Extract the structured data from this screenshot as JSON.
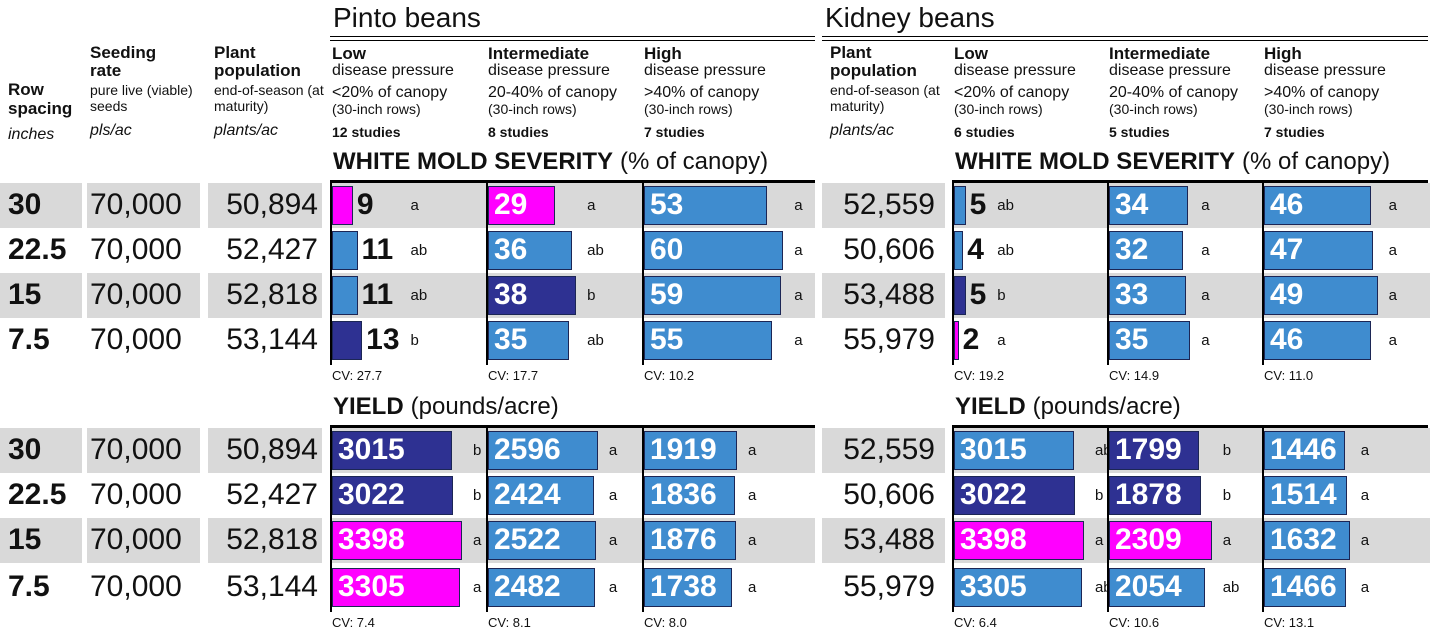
{
  "left_header": {
    "row_spacing": {
      "title": "Row spacing",
      "unit": "inches"
    },
    "seeding_rate": {
      "title": "Seeding rate",
      "note": "pure live (viable) seeds",
      "unit": "pls/ac"
    },
    "plant_population": {
      "title": "Plant population",
      "note": "end-of-season (at maturity)",
      "unit": "plants/ac"
    }
  },
  "row_spacing": [
    "30",
    "22.5",
    "15",
    "7.5"
  ],
  "seeding_rate": [
    "70,000",
    "70,000",
    "70,000",
    "70,000"
  ],
  "crops": [
    {
      "name": "Pinto beans",
      "population": [
        "50,894",
        "52,427",
        "52,818",
        "53,144"
      ],
      "conditions": [
        {
          "title": "Low",
          "subtitle": "disease pressure",
          "canopy": "<20% of canopy",
          "rows": "(30-inch rows)",
          "studies": "12 studies"
        },
        {
          "title": "Intermediate",
          "subtitle": "disease pressure",
          "canopy": "20-40% of canopy",
          "rows": "(30-inch rows)",
          "studies": "8 studies"
        },
        {
          "title": "High",
          "subtitle": "disease pressure",
          "canopy": ">40% of canopy",
          "rows": "(30-inch rows)",
          "studies": "7 studies"
        }
      ],
      "sections": [
        {
          "type": "severity",
          "title": "WHITE MOLD SEVERITY",
          "unit": "(% of canopy)",
          "columns": [
            {
              "values": [
                9,
                11,
                11,
                13
              ],
              "letters": [
                "a",
                "ab",
                "ab",
                "b"
              ],
              "colors": [
                "#ff00ff",
                "#3f8ccf",
                "#3f8ccf",
                "#2e3192"
              ],
              "cv": "CV: 27.7"
            },
            {
              "values": [
                29,
                36,
                38,
                35
              ],
              "letters": [
                "a",
                "ab",
                "b",
                "ab"
              ],
              "colors": [
                "#ff00ff",
                "#3f8ccf",
                "#2e3192",
                "#3f8ccf"
              ],
              "cv": "CV: 17.7"
            },
            {
              "values": [
                53,
                60,
                59,
                55
              ],
              "letters": [
                "a",
                "a",
                "a",
                "a"
              ],
              "colors": [
                "#3f8ccf",
                "#3f8ccf",
                "#3f8ccf",
                "#3f8ccf"
              ],
              "cv": "CV: 10.2"
            }
          ]
        },
        {
          "type": "yield",
          "title": "YIELD",
          "unit": "(pounds/acre)",
          "columns": [
            {
              "values": [
                3015,
                3022,
                3398,
                3305
              ],
              "letters": [
                "b",
                "b",
                "a",
                "a"
              ],
              "colors": [
                "#2e3192",
                "#2e3192",
                "#ff00ff",
                "#ff00ff"
              ],
              "cv": "CV: 7.4"
            },
            {
              "values": [
                2596,
                2424,
                2522,
                2482
              ],
              "letters": [
                "a",
                "a",
                "a",
                "a"
              ],
              "colors": [
                "#3f8ccf",
                "#3f8ccf",
                "#3f8ccf",
                "#3f8ccf"
              ],
              "cv": "CV: 8.1"
            },
            {
              "values": [
                1919,
                1836,
                1876,
                1738
              ],
              "letters": [
                "a",
                "a",
                "a",
                "a"
              ],
              "colors": [
                "#3f8ccf",
                "#3f8ccf",
                "#3f8ccf",
                "#3f8ccf"
              ],
              "cv": "CV: 8.0"
            }
          ]
        }
      ]
    },
    {
      "name": "Kidney beans",
      "population_header": {
        "title": "Plant population",
        "note": "end-of-season (at maturity)",
        "unit": "plants/ac"
      },
      "population": [
        "52,559",
        "50,606",
        "53,488",
        "55,979"
      ],
      "conditions": [
        {
          "title": "Low",
          "subtitle": "disease pressure",
          "canopy": "<20% of canopy",
          "rows": "(30-inch rows)",
          "studies": "6 studies"
        },
        {
          "title": "Intermediate",
          "subtitle": "disease pressure",
          "canopy": "20-40% of canopy",
          "rows": "(30-inch rows)",
          "studies": "5 studies"
        },
        {
          "title": "High",
          "subtitle": "disease pressure",
          "canopy": ">40% of canopy",
          "rows": "(30-inch rows)",
          "studies": "7 studies"
        }
      ],
      "sections": [
        {
          "type": "severity",
          "title": "WHITE MOLD SEVERITY",
          "unit": "(% of canopy)",
          "columns": [
            {
              "values": [
                5,
                4,
                5,
                2
              ],
              "letters": [
                "ab",
                "ab",
                "b",
                "a"
              ],
              "colors": [
                "#3f8ccf",
                "#3f8ccf",
                "#2e3192",
                "#ff00ff"
              ],
              "cv": "CV: 19.2"
            },
            {
              "values": [
                34,
                32,
                33,
                35
              ],
              "letters": [
                "a",
                "a",
                "a",
                "a"
              ],
              "colors": [
                "#3f8ccf",
                "#3f8ccf",
                "#3f8ccf",
                "#3f8ccf"
              ],
              "cv": "CV: 14.9"
            },
            {
              "values": [
                46,
                47,
                49,
                46
              ],
              "letters": [
                "a",
                "a",
                "a",
                "a"
              ],
              "colors": [
                "#3f8ccf",
                "#3f8ccf",
                "#3f8ccf",
                "#3f8ccf"
              ],
              "cv": "CV: 11.0"
            }
          ]
        },
        {
          "type": "yield",
          "title": "YIELD",
          "unit": "(pounds/acre)",
          "columns": [
            {
              "values": [
                3015,
                3022,
                3398,
                3305
              ],
              "letters": [
                "ab",
                "b",
                "a",
                "ab"
              ],
              "colors": [
                "#3f8ccf",
                "#2e3192",
                "#ff00ff",
                "#3f8ccf"
              ],
              "cv": "CV: 6.4"
            },
            {
              "values": [
                1799,
                1878,
                2309,
                2054
              ],
              "letters": [
                "b",
                "b",
                "a",
                "ab"
              ],
              "colors": [
                "#2e3192",
                "#2e3192",
                "#ff00ff",
                "#3f8ccf"
              ],
              "cv": "CV: 10.6"
            },
            {
              "values": [
                1446,
                1514,
                1632,
                1466
              ],
              "letters": [
                "a",
                "a",
                "a",
                "a"
              ],
              "colors": [
                "#3f8ccf",
                "#3f8ccf",
                "#3f8ccf",
                "#3f8ccf"
              ],
              "cv": "CV: 13.1"
            }
          ]
        }
      ]
    }
  ]
}
